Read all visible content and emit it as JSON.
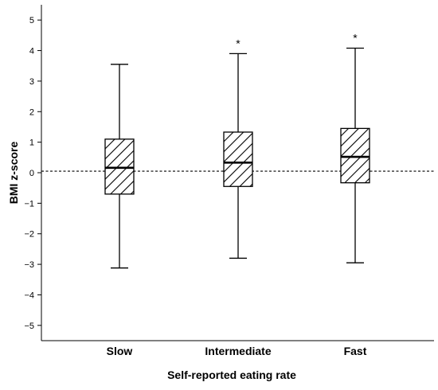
{
  "chart_data": {
    "type": "boxplot",
    "title": "",
    "xlabel": "Self-reported eating rate",
    "ylabel": "BMI z-score",
    "ylim": [
      -5.5,
      5.5
    ],
    "yticks": [
      5,
      4,
      3,
      2,
      1,
      0,
      -1,
      -2,
      -3,
      -4,
      -5
    ],
    "ytick_labels": [
      "5",
      "4",
      "3",
      "2",
      "1",
      "0",
      "−1",
      "−2",
      "−3",
      "−4",
      "−5"
    ],
    "reference_line": 0.05,
    "reference_line_style": "dashed",
    "box_fill": "diagonal-hatch",
    "categories": [
      "Slow",
      "Intermediate",
      "Fast"
    ],
    "boxes": [
      {
        "category": "Slow",
        "min": -3.12,
        "q1": -0.7,
        "median": 0.16,
        "q3": 1.1,
        "max": 3.55,
        "annotation": ""
      },
      {
        "category": "Intermediate",
        "min": -2.8,
        "q1": -0.45,
        "median": 0.33,
        "q3": 1.33,
        "max": 3.9,
        "annotation": "*"
      },
      {
        "category": "Fast",
        "min": -2.95,
        "q1": -0.33,
        "median": 0.52,
        "q3": 1.45,
        "max": 4.08,
        "annotation": "*"
      }
    ]
  }
}
